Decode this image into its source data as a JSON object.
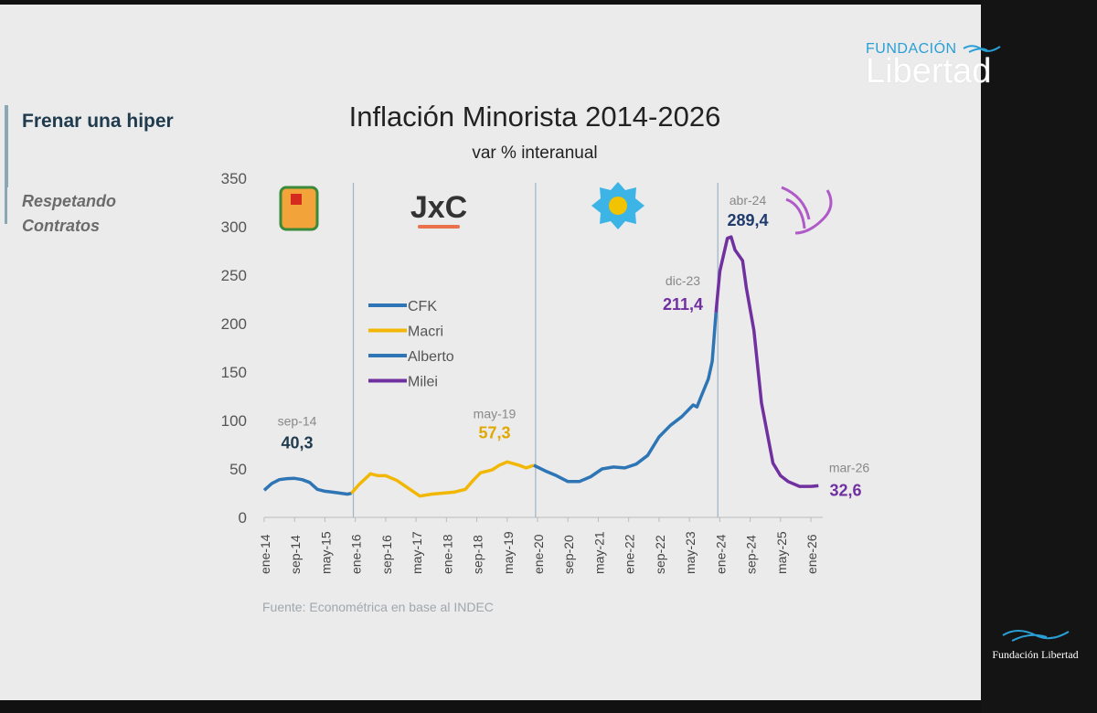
{
  "sidebar": {
    "title": "Frenar una hiper",
    "subtitle": "Respetando Contratos"
  },
  "logo": {
    "top_line1": "FUNDACIÓN",
    "top_line2": "Libertad",
    "bottom": "Fundación Libertad"
  },
  "chart_data": {
    "type": "line",
    "title": "Inflación Minorista 2014-2026",
    "subtitle": "var % interanual",
    "source": "Fuente: Econométrica en base al INDEC",
    "ylim": [
      0,
      350
    ],
    "yticks": [
      0,
      50,
      100,
      150,
      200,
      250,
      300,
      350
    ],
    "xticks": [
      "ene-14",
      "sep-14",
      "may-15",
      "ene-16",
      "sep-16",
      "may-17",
      "ene-18",
      "sep-18",
      "may-19",
      "ene-20",
      "sep-20",
      "may-21",
      "ene-22",
      "sep-22",
      "may-23",
      "ene-24",
      "sep-24",
      "may-25",
      "ene-26"
    ],
    "grid": false,
    "legend_placement": "center-left",
    "period_separators": [
      "2015-12",
      "2019-12",
      "2023-12"
    ],
    "period_logos": [
      "PJ",
      "JxC",
      "UP",
      "LLA"
    ],
    "series": [
      {
        "name": "CFK",
        "color": "#2e75b6",
        "points": [
          [
            "2014-01",
            28
          ],
          [
            "2014-03",
            35
          ],
          [
            "2014-05",
            39
          ],
          [
            "2014-07",
            40
          ],
          [
            "2014-09",
            40.3
          ],
          [
            "2014-11",
            39
          ],
          [
            "2015-01",
            36
          ],
          [
            "2015-03",
            29
          ],
          [
            "2015-05",
            27
          ],
          [
            "2015-07",
            26
          ],
          [
            "2015-09",
            25
          ],
          [
            "2015-11",
            24
          ],
          [
            "2015-12",
            25
          ]
        ]
      },
      {
        "name": "Macri",
        "color": "#f2b705",
        "points": [
          [
            "2015-12",
            25
          ],
          [
            "2016-02",
            34
          ],
          [
            "2016-05",
            45
          ],
          [
            "2016-07",
            43
          ],
          [
            "2016-09",
            43
          ],
          [
            "2016-12",
            38
          ],
          [
            "2017-03",
            30
          ],
          [
            "2017-06",
            22
          ],
          [
            "2017-09",
            24
          ],
          [
            "2017-12",
            25
          ],
          [
            "2018-03",
            26
          ],
          [
            "2018-06",
            29
          ],
          [
            "2018-08",
            38
          ],
          [
            "2018-10",
            46
          ],
          [
            "2019-01",
            49
          ],
          [
            "2019-03",
            54
          ],
          [
            "2019-05",
            57.3
          ],
          [
            "2019-08",
            54
          ],
          [
            "2019-10",
            51
          ],
          [
            "2019-12",
            53.8
          ]
        ]
      },
      {
        "name": "Alberto",
        "color": "#2e75b6",
        "points": [
          [
            "2019-12",
            53.8
          ],
          [
            "2020-03",
            48
          ],
          [
            "2020-06",
            43
          ],
          [
            "2020-09",
            37
          ],
          [
            "2020-12",
            37
          ],
          [
            "2021-03",
            42
          ],
          [
            "2021-06",
            50
          ],
          [
            "2021-09",
            52
          ],
          [
            "2021-12",
            51
          ],
          [
            "2022-03",
            55
          ],
          [
            "2022-06",
            64
          ],
          [
            "2022-09",
            83
          ],
          [
            "2022-12",
            95
          ],
          [
            "2023-03",
            104
          ],
          [
            "2023-06",
            116
          ],
          [
            "2023-07",
            114
          ],
          [
            "2023-08",
            124
          ],
          [
            "2023-10",
            143
          ],
          [
            "2023-11",
            161
          ],
          [
            "2023-12",
            211.4
          ]
        ]
      },
      {
        "name": "Milei",
        "color": "#7030a0",
        "points": [
          [
            "2023-12",
            211.4
          ],
          [
            "2024-01",
            254
          ],
          [
            "2024-03",
            288
          ],
          [
            "2024-04",
            289.4
          ],
          [
            "2024-05",
            276
          ],
          [
            "2024-07",
            265
          ],
          [
            "2024-08",
            237
          ],
          [
            "2024-10",
            193
          ],
          [
            "2024-12",
            118
          ],
          [
            "2025-03",
            56
          ],
          [
            "2025-05",
            43
          ],
          [
            "2025-07",
            37
          ],
          [
            "2025-10",
            32
          ],
          [
            "2026-01",
            32
          ],
          [
            "2026-03",
            32.6
          ]
        ]
      }
    ],
    "annotations": [
      {
        "date": "sep-14",
        "value": "40,3",
        "at": "2014-09",
        "color": "#1f3b4d"
      },
      {
        "date": "may-19",
        "value": "57,3",
        "at": "2019-05",
        "color": "#e0a800"
      },
      {
        "date": "dic-23",
        "value": "211,4",
        "at": "2023-12",
        "color": "#7030a0"
      },
      {
        "date": "abr-24",
        "value": "289,4",
        "at": "2024-04",
        "color": "#1f3b6d"
      },
      {
        "date": "mar-26",
        "value": "32,6",
        "at": "2026-03",
        "color": "#7030a0"
      }
    ]
  }
}
